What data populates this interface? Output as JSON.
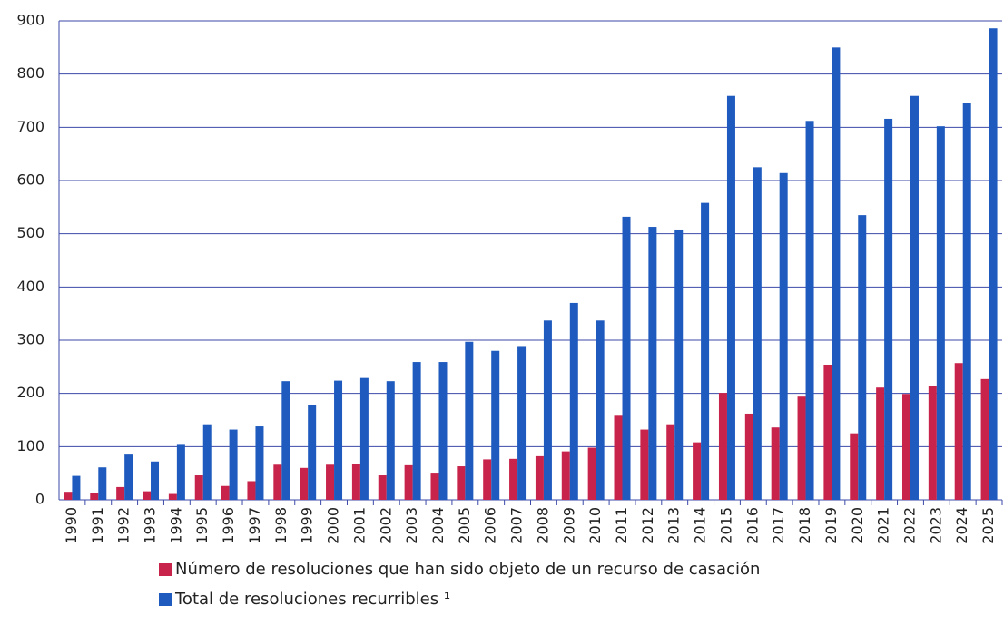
{
  "chart_data": {
    "type": "bar",
    "categories": [
      "1990",
      "1991",
      "1992",
      "1993",
      "1994",
      "1995",
      "1996",
      "1997",
      "1998",
      "1999",
      "2000",
      "2001",
      "2002",
      "2003",
      "2004",
      "2005",
      "2006",
      "2007",
      "2008",
      "2009",
      "2010",
      "2011",
      "2012",
      "2013",
      "2014",
      "2015",
      "2016",
      "2017",
      "2018",
      "2019",
      "2020",
      "2021",
      "2022",
      "2023",
      "2024",
      "2025"
    ],
    "series": [
      {
        "name": "Número de resoluciones que han sido objeto de un recurso de casación",
        "color": "#c8234a",
        "values": [
          15,
          12,
          24,
          16,
          11,
          46,
          26,
          35,
          66,
          60,
          66,
          68,
          46,
          65,
          51,
          63,
          76,
          77,
          82,
          91,
          98,
          158,
          132,
          142,
          108,
          201,
          162,
          136,
          194,
          254,
          125,
          211,
          199,
          214,
          257,
          227
        ]
      },
      {
        "name": "Total de resoluciones recurribles ¹",
        "color": "#1f5bbf",
        "values": [
          45,
          61,
          85,
          72,
          105,
          142,
          132,
          138,
          223,
          179,
          224,
          229,
          223,
          259,
          259,
          297,
          280,
          289,
          337,
          370,
          337,
          532,
          513,
          508,
          558,
          759,
          625,
          614,
          712,
          850,
          535,
          716,
          759,
          702,
          745,
          886
        ]
      }
    ],
    "ylim": [
      0,
      900
    ],
    "yticks": [
      0,
      100,
      200,
      300,
      400,
      500,
      600,
      700,
      800,
      900
    ],
    "grid": true
  }
}
